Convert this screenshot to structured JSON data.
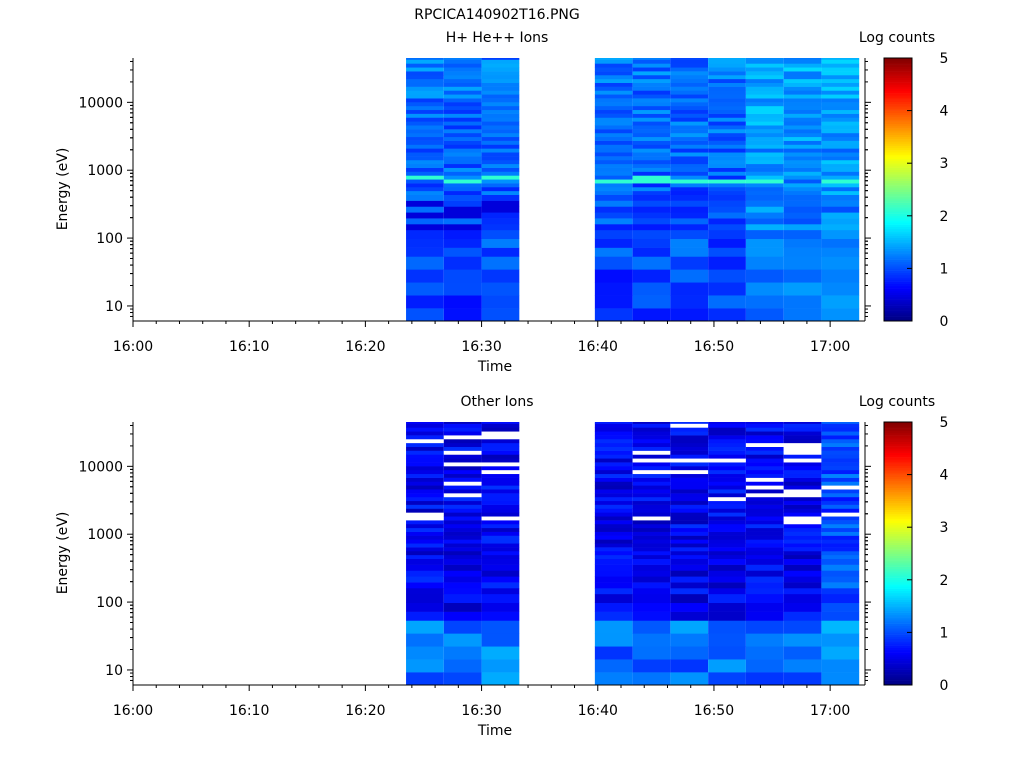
{
  "figure_title": "RPCICA140902T16.PNG",
  "chart_data": [
    {
      "type": "heatmap",
      "title": "H+ He++ Ions",
      "xlabel": "Time",
      "ylabel": "Energy (eV)",
      "x_ticks": [
        "16:00",
        "16:10",
        "16:20",
        "16:30",
        "16:40",
        "16:50",
        "17:00"
      ],
      "xlim": [
        "16:00",
        "17:03"
      ],
      "y_scale": "log",
      "y_ticks": [
        "10",
        "100",
        "1000",
        "10000"
      ],
      "ylim": [
        6,
        45000
      ],
      "colorbar": {
        "label": "Log counts",
        "ticks": [
          "0",
          "1",
          "2",
          "3",
          "4",
          "5"
        ],
        "range": [
          0,
          5
        ]
      },
      "time_bins": [
        [
          "16:23:30",
          "16:26:45"
        ],
        [
          "16:26:45",
          "16:30:00"
        ],
        [
          "16:30:00",
          "16:33:15"
        ],
        [
          "16:39:45",
          "16:43:00"
        ],
        [
          "16:43:00",
          "16:46:15"
        ],
        [
          "16:46:15",
          "16:49:30"
        ],
        [
          "16:49:30",
          "16:52:45"
        ],
        [
          "16:52:45",
          "16:56:00"
        ],
        [
          "16:56:00",
          "16:59:15"
        ],
        [
          "16:59:15",
          "17:02:30"
        ]
      ],
      "data_gap": [
        "16:33:15",
        "16:39:45"
      ]
    },
    {
      "type": "heatmap",
      "title": "Other Ions",
      "xlabel": "Time",
      "ylabel": "Energy (eV)",
      "x_ticks": [
        "16:00",
        "16:10",
        "16:20",
        "16:30",
        "16:40",
        "16:50",
        "17:00"
      ],
      "xlim": [
        "16:00",
        "17:03"
      ],
      "y_scale": "log",
      "y_ticks": [
        "10",
        "100",
        "1000",
        "10000"
      ],
      "ylim": [
        6,
        45000
      ],
      "colorbar": {
        "label": "Log counts",
        "ticks": [
          "0",
          "1",
          "2",
          "3",
          "4",
          "5"
        ],
        "range": [
          0,
          5
        ]
      },
      "time_bins": [
        [
          "16:23:30",
          "16:26:45"
        ],
        [
          "16:26:45",
          "16:30:00"
        ],
        [
          "16:30:00",
          "16:33:15"
        ],
        [
          "16:39:45",
          "16:43:00"
        ],
        [
          "16:43:00",
          "16:46:15"
        ],
        [
          "16:46:15",
          "16:49:30"
        ],
        [
          "16:49:30",
          "16:52:45"
        ],
        [
          "16:52:45",
          "16:56:00"
        ],
        [
          "16:56:00",
          "16:59:15"
        ],
        [
          "16:59:15",
          "17:02:30"
        ]
      ],
      "data_gap": [
        "16:33:15",
        "16:39:45"
      ]
    }
  ]
}
